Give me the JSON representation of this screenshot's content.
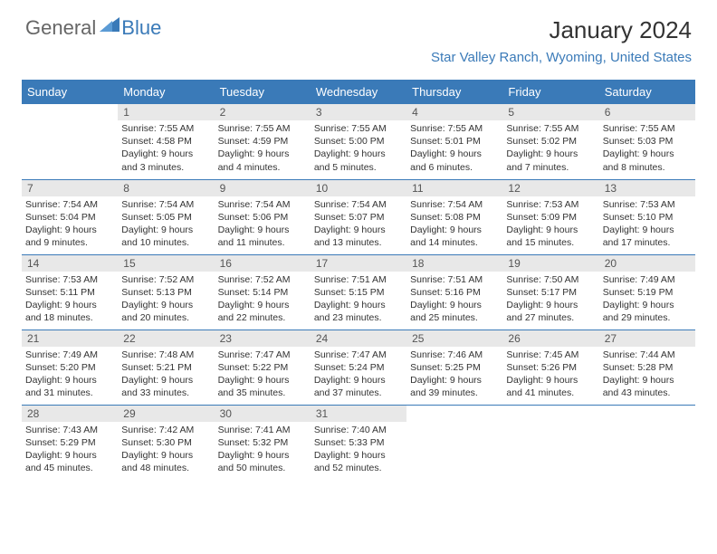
{
  "logo": {
    "general": "General",
    "blue": "Blue"
  },
  "title": "January 2024",
  "location": "Star Valley Ranch, Wyoming, United States",
  "header_bg": "#3a7ab8",
  "header_text": "#ffffff",
  "daynum_bg": "#e8e8e8",
  "row_border": "#3a7ab8",
  "days_of_week": [
    "Sunday",
    "Monday",
    "Tuesday",
    "Wednesday",
    "Thursday",
    "Friday",
    "Saturday"
  ],
  "weeks": [
    [
      {
        "n": "",
        "sr": "",
        "ss": "",
        "dl": ""
      },
      {
        "n": "1",
        "sr": "7:55 AM",
        "ss": "4:58 PM",
        "dl": "9 hours and 3 minutes."
      },
      {
        "n": "2",
        "sr": "7:55 AM",
        "ss": "4:59 PM",
        "dl": "9 hours and 4 minutes."
      },
      {
        "n": "3",
        "sr": "7:55 AM",
        "ss": "5:00 PM",
        "dl": "9 hours and 5 minutes."
      },
      {
        "n": "4",
        "sr": "7:55 AM",
        "ss": "5:01 PM",
        "dl": "9 hours and 6 minutes."
      },
      {
        "n": "5",
        "sr": "7:55 AM",
        "ss": "5:02 PM",
        "dl": "9 hours and 7 minutes."
      },
      {
        "n": "6",
        "sr": "7:55 AM",
        "ss": "5:03 PM",
        "dl": "9 hours and 8 minutes."
      }
    ],
    [
      {
        "n": "7",
        "sr": "7:54 AM",
        "ss": "5:04 PM",
        "dl": "9 hours and 9 minutes."
      },
      {
        "n": "8",
        "sr": "7:54 AM",
        "ss": "5:05 PM",
        "dl": "9 hours and 10 minutes."
      },
      {
        "n": "9",
        "sr": "7:54 AM",
        "ss": "5:06 PM",
        "dl": "9 hours and 11 minutes."
      },
      {
        "n": "10",
        "sr": "7:54 AM",
        "ss": "5:07 PM",
        "dl": "9 hours and 13 minutes."
      },
      {
        "n": "11",
        "sr": "7:54 AM",
        "ss": "5:08 PM",
        "dl": "9 hours and 14 minutes."
      },
      {
        "n": "12",
        "sr": "7:53 AM",
        "ss": "5:09 PM",
        "dl": "9 hours and 15 minutes."
      },
      {
        "n": "13",
        "sr": "7:53 AM",
        "ss": "5:10 PM",
        "dl": "9 hours and 17 minutes."
      }
    ],
    [
      {
        "n": "14",
        "sr": "7:53 AM",
        "ss": "5:11 PM",
        "dl": "9 hours and 18 minutes."
      },
      {
        "n": "15",
        "sr": "7:52 AM",
        "ss": "5:13 PM",
        "dl": "9 hours and 20 minutes."
      },
      {
        "n": "16",
        "sr": "7:52 AM",
        "ss": "5:14 PM",
        "dl": "9 hours and 22 minutes."
      },
      {
        "n": "17",
        "sr": "7:51 AM",
        "ss": "5:15 PM",
        "dl": "9 hours and 23 minutes."
      },
      {
        "n": "18",
        "sr": "7:51 AM",
        "ss": "5:16 PM",
        "dl": "9 hours and 25 minutes."
      },
      {
        "n": "19",
        "sr": "7:50 AM",
        "ss": "5:17 PM",
        "dl": "9 hours and 27 minutes."
      },
      {
        "n": "20",
        "sr": "7:49 AM",
        "ss": "5:19 PM",
        "dl": "9 hours and 29 minutes."
      }
    ],
    [
      {
        "n": "21",
        "sr": "7:49 AM",
        "ss": "5:20 PM",
        "dl": "9 hours and 31 minutes."
      },
      {
        "n": "22",
        "sr": "7:48 AM",
        "ss": "5:21 PM",
        "dl": "9 hours and 33 minutes."
      },
      {
        "n": "23",
        "sr": "7:47 AM",
        "ss": "5:22 PM",
        "dl": "9 hours and 35 minutes."
      },
      {
        "n": "24",
        "sr": "7:47 AM",
        "ss": "5:24 PM",
        "dl": "9 hours and 37 minutes."
      },
      {
        "n": "25",
        "sr": "7:46 AM",
        "ss": "5:25 PM",
        "dl": "9 hours and 39 minutes."
      },
      {
        "n": "26",
        "sr": "7:45 AM",
        "ss": "5:26 PM",
        "dl": "9 hours and 41 minutes."
      },
      {
        "n": "27",
        "sr": "7:44 AM",
        "ss": "5:28 PM",
        "dl": "9 hours and 43 minutes."
      }
    ],
    [
      {
        "n": "28",
        "sr": "7:43 AM",
        "ss": "5:29 PM",
        "dl": "9 hours and 45 minutes."
      },
      {
        "n": "29",
        "sr": "7:42 AM",
        "ss": "5:30 PM",
        "dl": "9 hours and 48 minutes."
      },
      {
        "n": "30",
        "sr": "7:41 AM",
        "ss": "5:32 PM",
        "dl": "9 hours and 50 minutes."
      },
      {
        "n": "31",
        "sr": "7:40 AM",
        "ss": "5:33 PM",
        "dl": "9 hours and 52 minutes."
      },
      {
        "n": "",
        "sr": "",
        "ss": "",
        "dl": ""
      },
      {
        "n": "",
        "sr": "",
        "ss": "",
        "dl": ""
      },
      {
        "n": "",
        "sr": "",
        "ss": "",
        "dl": ""
      }
    ]
  ],
  "labels": {
    "sunrise": "Sunrise:",
    "sunset": "Sunset:",
    "daylight": "Daylight:"
  }
}
